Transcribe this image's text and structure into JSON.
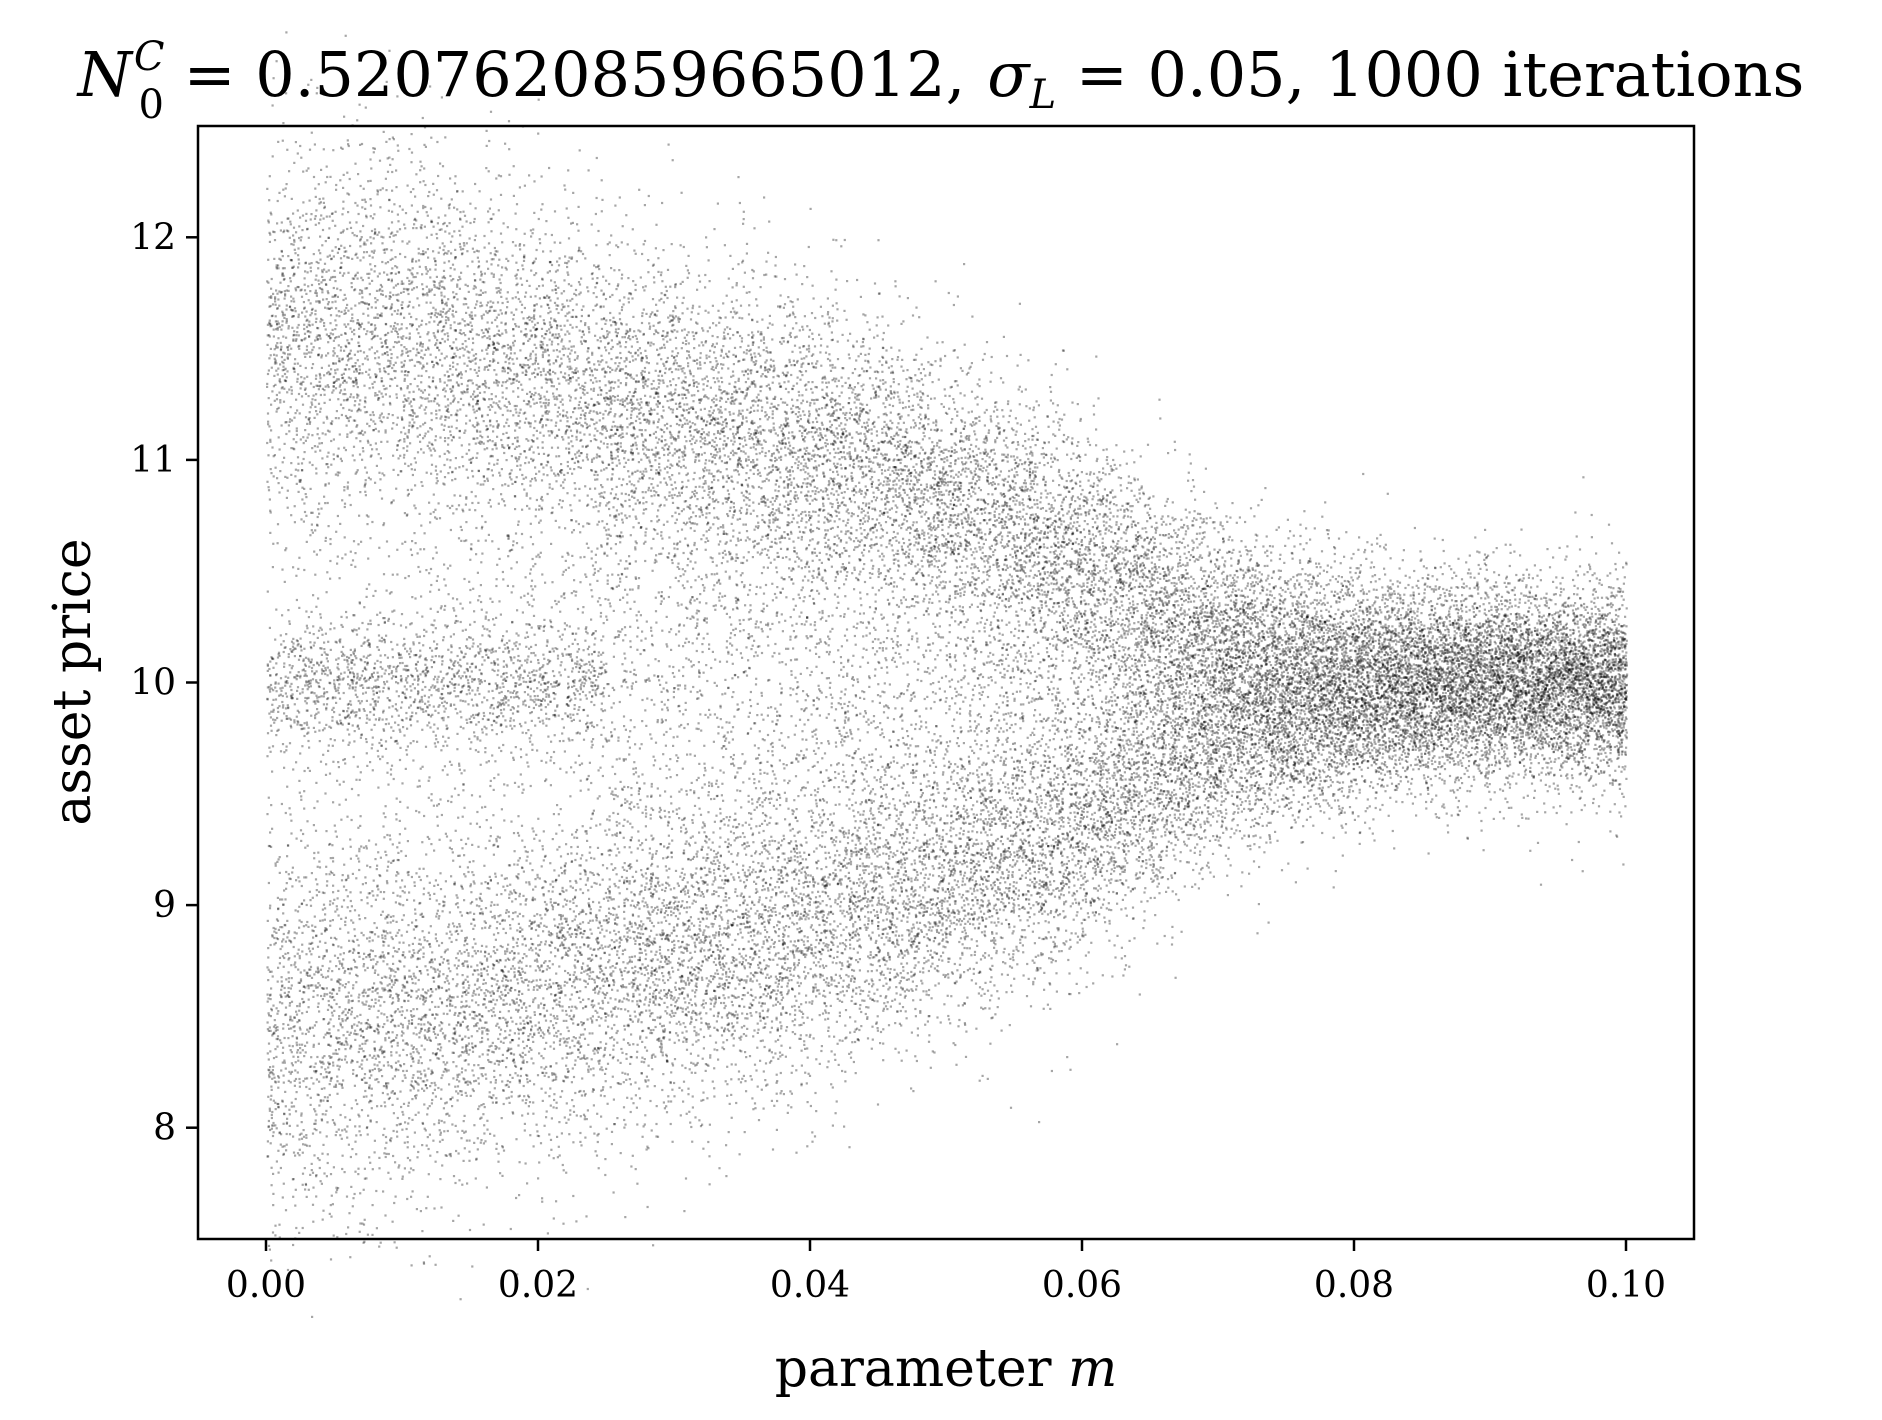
{
  "chart_data": {
    "type": "scatter",
    "title": {
      "n_symbol": "N",
      "n_superscript": "C",
      "n_subscript": "0",
      "n_value": " = 0.5207620859665012,",
      "sigma_symbol": "σ",
      "sigma_subscript": "L",
      "sigma_value": " = 0.05, 1000 iterations"
    },
    "xlabel": {
      "text": "parameter ",
      "variable": "m"
    },
    "ylabel": "asset price",
    "xlim": [
      -0.005,
      0.105
    ],
    "ylim": [
      7.5,
      12.5
    ],
    "x_ticks": [
      {
        "value": 0.0,
        "label": "0.00"
      },
      {
        "value": 0.02,
        "label": "0.02"
      },
      {
        "value": 0.04,
        "label": "0.04"
      },
      {
        "value": 0.06,
        "label": "0.06"
      },
      {
        "value": 0.08,
        "label": "0.08"
      },
      {
        "value": 0.1,
        "label": "0.10"
      }
    ],
    "y_ticks": [
      {
        "value": 8,
        "label": "8"
      },
      {
        "value": 9,
        "label": "9"
      },
      {
        "value": 10,
        "label": "10"
      },
      {
        "value": 11,
        "label": "11"
      },
      {
        "value": 12,
        "label": "12"
      }
    ],
    "grid": false,
    "legend": "none",
    "marker_color": "#000000",
    "iterations_per_parameter": 1000,
    "x_range": [
      0.0,
      0.1
    ],
    "branch_profile": [
      {
        "m": 0.0,
        "upper": 11.6,
        "middle": 10.0,
        "lower": 8.4
      },
      {
        "m": 0.01,
        "upper": 11.6,
        "middle": 10.0,
        "lower": 8.5
      },
      {
        "m": 0.02,
        "upper": 11.4,
        "middle": 10.0,
        "lower": 8.6
      },
      {
        "m": 0.03,
        "upper": 11.25,
        "middle": null,
        "lower": 8.7
      },
      {
        "m": 0.04,
        "upper": 11.1,
        "middle": null,
        "lower": 8.85
      },
      {
        "m": 0.05,
        "upper": 10.9,
        "middle": null,
        "lower": 9.05
      },
      {
        "m": 0.06,
        "upper": 10.6,
        "middle": null,
        "lower": 9.3
      },
      {
        "m": 0.07,
        "upper": 10.25,
        "middle": null,
        "lower": 9.7
      },
      {
        "m": 0.08,
        "upper": 10.05,
        "middle": null,
        "lower": 9.9
      },
      {
        "m": 0.09,
        "upper": 10.0,
        "middle": null,
        "lower": 10.0
      },
      {
        "m": 0.1,
        "upper": 10.0,
        "middle": null,
        "lower": 10.0
      }
    ]
  }
}
